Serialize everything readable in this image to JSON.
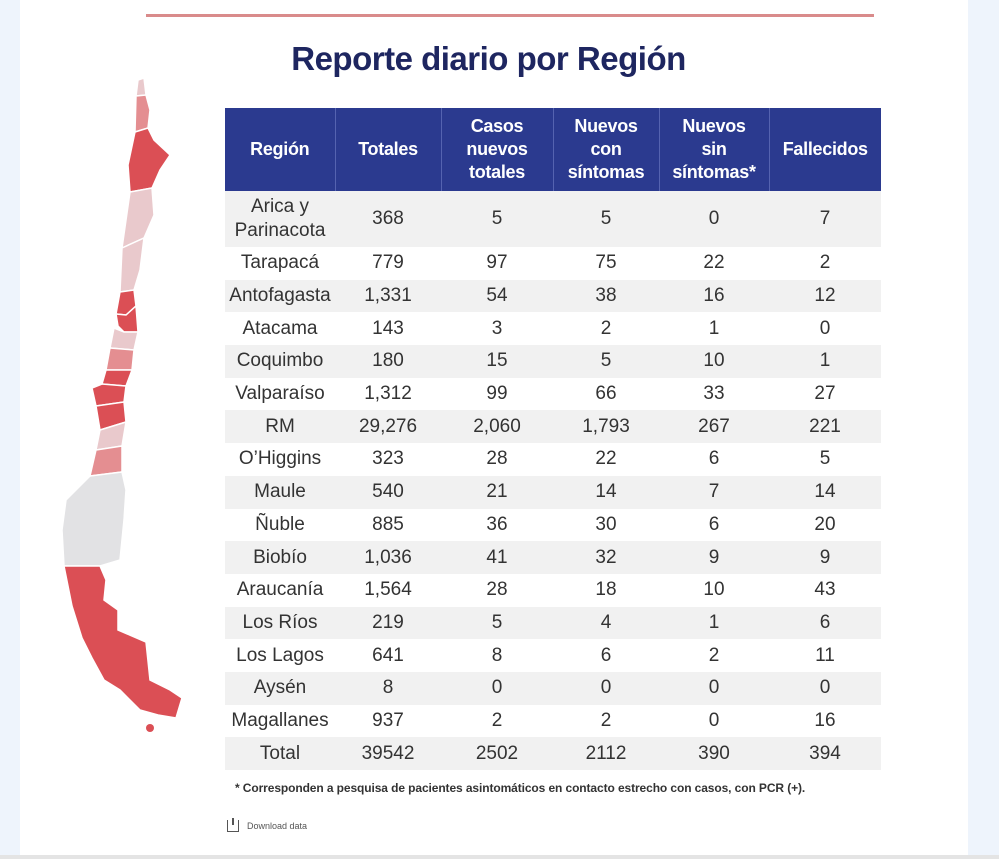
{
  "title": "Reporte diario por Región",
  "table": {
    "headers": [
      "Región",
      "Totales",
      "Casos nuevos totales",
      "Nuevos con síntomas",
      "Nuevos sin síntomas*",
      "Fallecidos"
    ],
    "header_lines": [
      [
        "Región"
      ],
      [
        "Totales"
      ],
      [
        "Casos",
        "nuevos",
        "totales"
      ],
      [
        "Nuevos",
        "con",
        "síntomas"
      ],
      [
        "Nuevos",
        "sin",
        "síntomas*"
      ],
      [
        "Fallecidos"
      ]
    ],
    "rows": [
      {
        "region": "Arica y Parinacota",
        "totales": "368",
        "nuevos_totales": "5",
        "con_sintomas": "5",
        "sin_sintomas": "0",
        "fallecidos": "7"
      },
      {
        "region": "Tarapacá",
        "totales": "779",
        "nuevos_totales": "97",
        "con_sintomas": "75",
        "sin_sintomas": "22",
        "fallecidos": "2"
      },
      {
        "region": "Antofagasta",
        "totales": "1,331",
        "nuevos_totales": "54",
        "con_sintomas": "38",
        "sin_sintomas": "16",
        "fallecidos": "12"
      },
      {
        "region": "Atacama",
        "totales": "143",
        "nuevos_totales": "3",
        "con_sintomas": "2",
        "sin_sintomas": "1",
        "fallecidos": "0"
      },
      {
        "region": "Coquimbo",
        "totales": "180",
        "nuevos_totales": "15",
        "con_sintomas": "5",
        "sin_sintomas": "10",
        "fallecidos": "1"
      },
      {
        "region": "Valparaíso",
        "totales": "1,312",
        "nuevos_totales": "99",
        "con_sintomas": "66",
        "sin_sintomas": "33",
        "fallecidos": "27"
      },
      {
        "region": "RM",
        "totales": "29,276",
        "nuevos_totales": "2,060",
        "con_sintomas": "1,793",
        "sin_sintomas": "267",
        "fallecidos": "221"
      },
      {
        "region": "O’Higgins",
        "totales": "323",
        "nuevos_totales": "28",
        "con_sintomas": "22",
        "sin_sintomas": "6",
        "fallecidos": "5"
      },
      {
        "region": "Maule",
        "totales": "540",
        "nuevos_totales": "21",
        "con_sintomas": "14",
        "sin_sintomas": "7",
        "fallecidos": "14"
      },
      {
        "region": "Ñuble",
        "totales": "885",
        "nuevos_totales": "36",
        "con_sintomas": "30",
        "sin_sintomas": "6",
        "fallecidos": "20"
      },
      {
        "region": "Biobío",
        "totales": "1,036",
        "nuevos_totales": "41",
        "con_sintomas": "32",
        "sin_sintomas": "9",
        "fallecidos": "9"
      },
      {
        "region": "Araucanía",
        "totales": "1,564",
        "nuevos_totales": "28",
        "con_sintomas": "18",
        "sin_sintomas": "10",
        "fallecidos": "43"
      },
      {
        "region": "Los Ríos",
        "totales": "219",
        "nuevos_totales": "5",
        "con_sintomas": "4",
        "sin_sintomas": "1",
        "fallecidos": "6"
      },
      {
        "region": "Los Lagos",
        "totales": "641",
        "nuevos_totales": "8",
        "con_sintomas": "6",
        "sin_sintomas": "2",
        "fallecidos": "11"
      },
      {
        "region": "Aysén",
        "totales": "8",
        "nuevos_totales": "0",
        "con_sintomas": "0",
        "sin_sintomas": "0",
        "fallecidos": "0"
      },
      {
        "region": "Magallanes",
        "totales": "937",
        "nuevos_totales": "2",
        "con_sintomas": "2",
        "sin_sintomas": "0",
        "fallecidos": "16"
      },
      {
        "region": "Total",
        "totales": "39542",
        "nuevos_totales": "2502",
        "con_sintomas": "2112",
        "sin_sintomas": "390",
        "fallecidos": "394"
      }
    ]
  },
  "footnote": "* Corresponden a pesquisa de pacientes asintomáticos en contacto estrecho con casos, con PCR (+).",
  "download": {
    "label": "Download data",
    "icon": "download-icon"
  },
  "colors": {
    "header_bg": "#2b3a8f",
    "title": "#1e2660",
    "map_high": "#db4f55",
    "map_mid": "#e48e91",
    "map_low": "#e9c9cc",
    "map_none": "#e2e2e4",
    "rule": "#d98b8b"
  }
}
